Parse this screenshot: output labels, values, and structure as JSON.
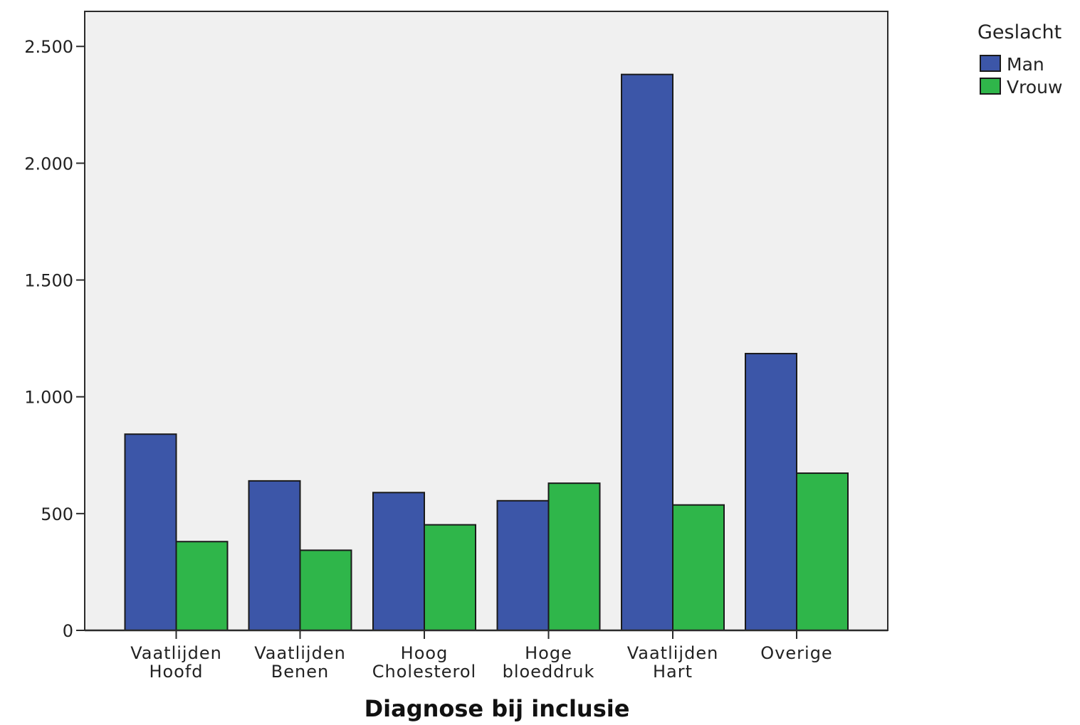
{
  "chart_data": {
    "type": "bar",
    "title": "",
    "xlabel": "Diagnose bij inclusie",
    "ylabel": "",
    "ylim": [
      0,
      2650
    ],
    "yticks": [
      0,
      500,
      1000,
      1500,
      2000,
      2500
    ],
    "ytick_labels": [
      "0",
      "500",
      "1.000",
      "1.500",
      "2.000",
      "2.500"
    ],
    "categories": [
      [
        "Vaatlijden",
        "Hoofd"
      ],
      [
        "Vaatlijden",
        "Benen"
      ],
      [
        "Hoog",
        "Cholesterol"
      ],
      [
        "Hoge",
        "bloeddruk"
      ],
      [
        "Vaatlijden",
        "Hart"
      ],
      [
        "Overige"
      ]
    ],
    "series": [
      {
        "name": "Man",
        "color": "#3c56a8",
        "values": [
          840,
          640,
          590,
          555,
          2380,
          1185
        ]
      },
      {
        "name": "Vrouw",
        "color": "#2fb64a",
        "values": [
          380,
          343,
          452,
          630,
          537,
          673
        ]
      }
    ],
    "legend": {
      "title": "Geslacht",
      "position": "right"
    },
    "grid": false,
    "plot_background": "#f0f0f0"
  }
}
